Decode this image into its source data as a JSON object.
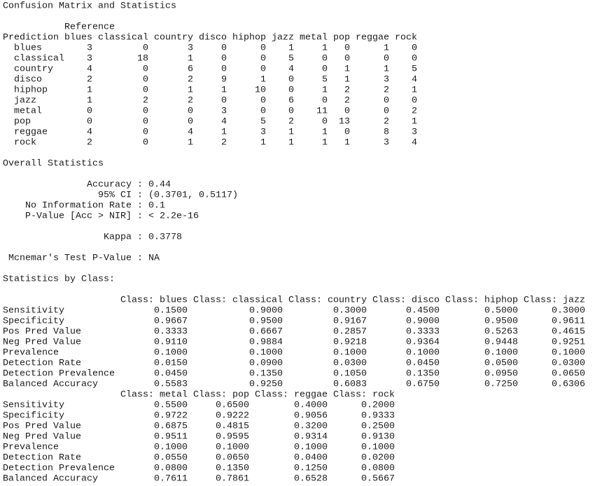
{
  "title": "Confusion Matrix and Statistics",
  "confusion_matrix": {
    "reference_label": "Reference",
    "prediction_label": "Prediction",
    "columns": [
      "blues",
      "classical",
      "country",
      "disco",
      "hiphop",
      "jazz",
      "metal",
      "pop",
      "reggae",
      "rock"
    ],
    "rows": [
      {
        "label": "blues",
        "values": [
          3,
          0,
          3,
          0,
          0,
          1,
          1,
          0,
          1,
          0
        ]
      },
      {
        "label": "classical",
        "values": [
          3,
          18,
          1,
          0,
          0,
          5,
          0,
          0,
          0,
          0
        ]
      },
      {
        "label": "country",
        "values": [
          4,
          0,
          6,
          0,
          0,
          4,
          0,
          1,
          1,
          5
        ]
      },
      {
        "label": "disco",
        "values": [
          2,
          0,
          2,
          9,
          1,
          0,
          5,
          1,
          3,
          4
        ]
      },
      {
        "label": "hiphop",
        "values": [
          1,
          0,
          1,
          1,
          10,
          0,
          1,
          2,
          2,
          1
        ]
      },
      {
        "label": "jazz",
        "values": [
          1,
          2,
          2,
          0,
          0,
          6,
          0,
          2,
          0,
          0
        ]
      },
      {
        "label": "metal",
        "values": [
          0,
          0,
          0,
          3,
          0,
          0,
          11,
          0,
          0,
          2
        ]
      },
      {
        "label": "pop",
        "values": [
          0,
          0,
          0,
          4,
          5,
          2,
          0,
          13,
          2,
          1
        ]
      },
      {
        "label": "reggae",
        "values": [
          4,
          0,
          4,
          1,
          3,
          1,
          1,
          0,
          8,
          3
        ]
      },
      {
        "label": "rock",
        "values": [
          2,
          0,
          1,
          2,
          1,
          1,
          1,
          1,
          3,
          4
        ]
      }
    ]
  },
  "overall_statistics": {
    "title": "Overall Statistics",
    "separator": ":",
    "items": [
      {
        "label": "Accuracy",
        "value": "0.44"
      },
      {
        "label": "95% CI",
        "value": "(0.3701, 0.5117)"
      },
      {
        "label": "No Information Rate",
        "value": "0.1"
      },
      {
        "label": "P-Value [Acc > NIR]",
        "value": "< 2.2e-16"
      },
      {
        "label": "Kappa",
        "value": "0.3778"
      },
      {
        "label": "Mcnemar's Test P-Value",
        "value": "NA"
      }
    ]
  },
  "statistics_by_class": {
    "title": "Statistics by Class:",
    "blocks": [
      {
        "headers": [
          "Class: blues",
          "Class: classical",
          "Class: country",
          "Class: disco",
          "Class: hiphop",
          "Class: jazz"
        ],
        "rows": [
          {
            "label": "Sensitivity",
            "values": [
              "0.1500",
              "0.9000",
              "0.3000",
              "0.4500",
              "0.5000",
              "0.3000"
            ]
          },
          {
            "label": "Specificity",
            "values": [
              "0.9667",
              "0.9500",
              "0.9167",
              "0.9000",
              "0.9500",
              "0.9611"
            ]
          },
          {
            "label": "Pos Pred Value",
            "values": [
              "0.3333",
              "0.6667",
              "0.2857",
              "0.3333",
              "0.5263",
              "0.4615"
            ]
          },
          {
            "label": "Neg Pred Value",
            "values": [
              "0.9110",
              "0.9884",
              "0.9218",
              "0.9364",
              "0.9448",
              "0.9251"
            ]
          },
          {
            "label": "Prevalence",
            "values": [
              "0.1000",
              "0.1000",
              "0.1000",
              "0.1000",
              "0.1000",
              "0.1000"
            ]
          },
          {
            "label": "Detection Rate",
            "values": [
              "0.0150",
              "0.0900",
              "0.0300",
              "0.0450",
              "0.0500",
              "0.0300"
            ]
          },
          {
            "label": "Detection Prevalence",
            "values": [
              "0.0450",
              "0.1350",
              "0.1050",
              "0.1350",
              "0.0950",
              "0.0650"
            ]
          },
          {
            "label": "Balanced Accuracy",
            "values": [
              "0.5583",
              "0.9250",
              "0.6083",
              "0.6750",
              "0.7250",
              "0.6306"
            ]
          }
        ]
      },
      {
        "headers": [
          "Class: metal",
          "Class: pop",
          "Class: reggae",
          "Class: rock"
        ],
        "rows": [
          {
            "label": "Sensitivity",
            "values": [
              "0.5500",
              "0.6500",
              "0.4000",
              "0.2000"
            ]
          },
          {
            "label": "Specificity",
            "values": [
              "0.9722",
              "0.9222",
              "0.9056",
              "0.9333"
            ]
          },
          {
            "label": "Pos Pred Value",
            "values": [
              "0.6875",
              "0.4815",
              "0.3200",
              "0.2500"
            ]
          },
          {
            "label": "Neg Pred Value",
            "values": [
              "0.9511",
              "0.9595",
              "0.9314",
              "0.9130"
            ]
          },
          {
            "label": "Prevalence",
            "values": [
              "0.1000",
              "0.1000",
              "0.1000",
              "0.1000"
            ]
          },
          {
            "label": "Detection Rate",
            "values": [
              "0.0550",
              "0.0650",
              "0.0400",
              "0.0200"
            ]
          },
          {
            "label": "Detection Prevalence",
            "values": [
              "0.0800",
              "0.1350",
              "0.1250",
              "0.0800"
            ]
          },
          {
            "label": "Balanced Accuracy",
            "values": [
              "0.7611",
              "0.7861",
              "0.6528",
              "0.5667"
            ]
          }
        ]
      }
    ]
  }
}
